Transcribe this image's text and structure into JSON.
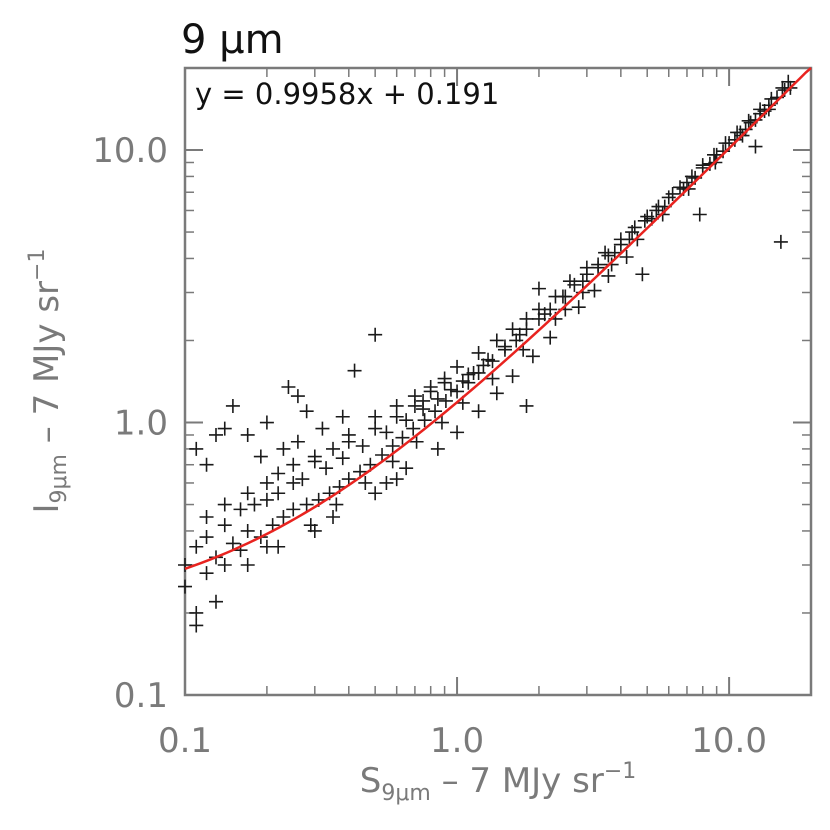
{
  "chart_data": {
    "type": "scatter",
    "title": "9 μm",
    "annotation": "y = 0.9958x + 0.191",
    "xlabel": {
      "base": "S",
      "sub": "9μm",
      "rest": " – 7 MJy sr",
      "sup": "−1"
    },
    "ylabel": {
      "base": "I",
      "sub": "9μm",
      "rest": " – 7 MJy sr",
      "sup": "−1"
    },
    "xscale": "log",
    "yscale": "log",
    "xlim": [
      0.1,
      20
    ],
    "ylim": [
      0.1,
      20
    ],
    "x_ticks": [
      "0.1",
      "1.0",
      "10.0"
    ],
    "y_ticks": [
      "0.1",
      "1.0",
      "10.0"
    ],
    "grid": false,
    "colors": {
      "points": "#1a1a1a",
      "fit": "#e8231f",
      "axes": "#7a7a7a",
      "title": "#111111"
    },
    "series": [
      {
        "marker": "plus",
        "x": [
          0.1,
          0.1,
          0.11,
          0.11,
          0.12,
          0.13,
          0.14,
          0.16,
          0.11,
          0.13,
          0.12,
          0.14,
          0.15,
          0.17,
          0.19,
          0.21,
          0.23,
          0.25,
          0.28,
          0.31,
          0.34,
          0.37,
          0.4,
          0.44,
          0.48,
          0.53,
          0.58,
          0.63,
          0.69,
          0.76,
          0.83,
          0.91,
          1.0,
          1.1,
          1.2,
          1.35,
          1.5,
          1.65,
          1.8,
          2.0,
          2.2,
          2.45,
          2.7,
          3.0,
          3.3,
          3.6,
          4.0,
          4.4,
          4.9,
          5.4,
          6.0,
          6.6,
          7.3,
          8.0,
          8.8,
          9.7,
          10.7,
          11.8,
          13.0,
          14.3,
          15.7,
          16.5,
          0.2,
          0.25,
          0.3,
          0.35,
          0.4,
          0.5,
          0.6,
          0.7,
          0.8,
          0.9,
          1.0,
          1.2,
          1.4,
          1.6,
          1.8,
          2.0,
          2.3,
          2.6,
          3.0,
          3.5,
          4.0,
          4.5,
          5.0,
          5.5,
          6.2,
          7.0,
          8.0,
          9.0,
          10.0,
          11.0,
          12.0,
          13.0,
          14.0,
          15.0,
          16.0,
          0.16,
          0.18,
          0.22,
          0.27,
          0.33,
          0.38,
          0.45,
          0.55,
          0.65,
          0.75,
          0.85,
          0.95,
          1.05,
          1.15,
          1.25,
          0.12,
          0.14,
          0.17,
          0.2,
          0.22,
          0.25,
          0.3,
          0.4,
          0.5,
          0.6,
          0.7,
          0.75,
          0.8,
          0.9,
          1.1,
          1.3,
          1.5,
          1.7,
          2.1,
          2.5,
          2.9,
          3.3,
          3.8,
          4.3,
          5.2,
          5.8,
          6.8,
          7.5,
          8.5,
          9.5,
          10.5,
          11.5,
          12.5,
          13.5,
          0.2,
          0.3,
          0.35,
          0.5,
          0.55,
          0.6,
          0.65,
          0.85,
          1.0,
          1.2,
          1.4,
          1.6,
          1.9,
          2.2,
          2.8,
          3.2,
          3.6,
          4.2,
          0.13,
          0.15,
          0.2,
          0.24,
          0.26,
          0.42,
          0.28,
          0.11,
          0.12,
          0.14,
          0.17,
          0.19,
          0.23,
          0.26,
          0.32,
          0.38,
          0.5,
          1.8,
          2.5,
          2.0,
          4.8,
          7.8,
          12.5,
          15.5,
          0.17,
          0.22,
          0.29,
          0.36,
          0.46,
          0.58,
          0.71,
          0.88,
          1.05,
          1.35,
          1.75,
          2.3,
          2.9,
          3.7,
          4.6,
          5.7,
          7.1,
          8.9,
          11.2,
          14.0,
          16.8
        ],
        "y": [
          0.25,
          0.3,
          0.2,
          0.35,
          0.28,
          0.32,
          0.3,
          0.34,
          0.18,
          0.22,
          0.38,
          0.42,
          0.36,
          0.4,
          0.38,
          0.42,
          0.45,
          0.48,
          0.5,
          0.52,
          0.55,
          0.58,
          0.62,
          0.66,
          0.7,
          0.76,
          0.82,
          0.88,
          0.95,
          1.02,
          1.1,
          1.2,
          1.3,
          1.4,
          1.52,
          1.68,
          1.85,
          2.0,
          2.2,
          2.4,
          2.6,
          2.9,
          3.2,
          3.5,
          3.8,
          4.1,
          4.5,
          5.0,
          5.5,
          6.0,
          6.7,
          7.3,
          8.0,
          8.8,
          9.6,
          10.6,
          11.6,
          12.8,
          14.1,
          15.4,
          16.9,
          17.8,
          0.52,
          0.6,
          0.72,
          0.8,
          0.9,
          1.05,
          1.15,
          1.25,
          1.35,
          1.45,
          1.6,
          1.8,
          2.0,
          2.2,
          2.4,
          2.6,
          2.9,
          3.3,
          3.7,
          4.2,
          4.7,
          5.2,
          5.7,
          6.2,
          6.9,
          7.6,
          8.6,
          9.6,
          10.6,
          11.6,
          12.6,
          13.6,
          14.6,
          15.6,
          16.6,
          0.48,
          0.5,
          0.55,
          0.62,
          0.68,
          0.74,
          0.82,
          0.92,
          1.02,
          1.12,
          1.22,
          1.32,
          1.42,
          1.52,
          1.62,
          0.45,
          0.5,
          0.55,
          0.6,
          0.65,
          0.7,
          0.75,
          0.85,
          0.95,
          1.05,
          1.15,
          1.2,
          1.3,
          1.4,
          1.5,
          1.7,
          1.9,
          2.1,
          2.5,
          2.9,
          3.3,
          3.7,
          4.2,
          4.7,
          5.6,
          6.2,
          7.2,
          7.9,
          8.9,
          9.9,
          10.9,
          11.9,
          12.9,
          13.9,
          0.35,
          0.4,
          0.45,
          0.55,
          0.6,
          0.62,
          0.68,
          0.8,
          0.92,
          1.1,
          1.28,
          1.48,
          1.75,
          2.05,
          2.65,
          3.05,
          3.45,
          4.05,
          0.9,
          1.15,
          1.0,
          1.35,
          1.25,
          1.55,
          1.1,
          0.8,
          0.7,
          0.95,
          0.9,
          0.75,
          0.8,
          0.85,
          0.95,
          1.05,
          2.1,
          1.15,
          2.6,
          3.1,
          3.5,
          5.8,
          10.3,
          4.6,
          0.3,
          0.35,
          0.42,
          0.5,
          0.6,
          0.72,
          0.85,
          1.0,
          1.18,
          1.45,
          1.85,
          2.4,
          3.0,
          3.8,
          4.7,
          5.8,
          7.2,
          9.0,
          11.3,
          14.1,
          16.9
        ]
      }
    ],
    "fit": {
      "slope": 0.9958,
      "intercept": 0.191
    }
  }
}
